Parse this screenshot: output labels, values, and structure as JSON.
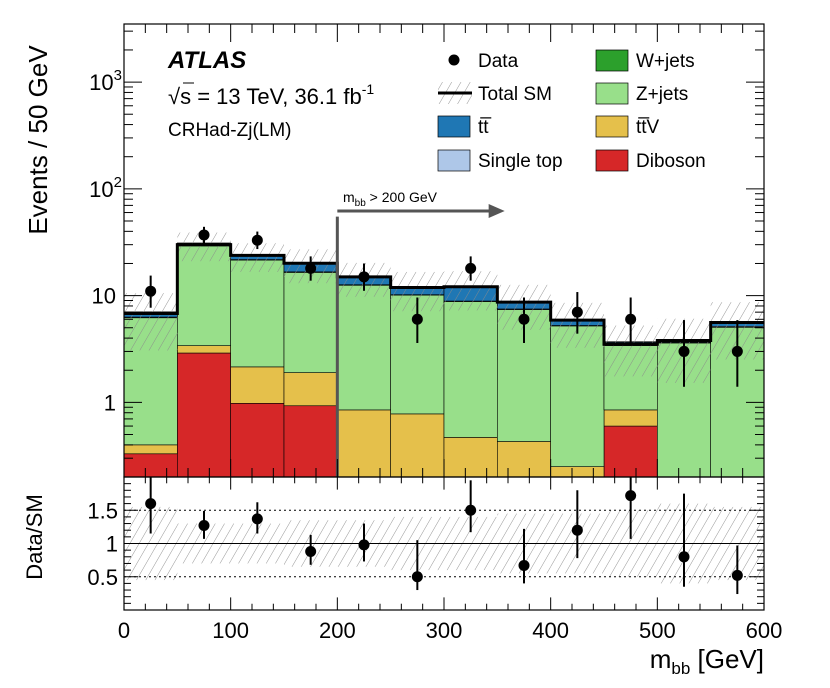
{
  "colors": {
    "wjets": "#2ca02c",
    "zjets": "#98df8a",
    "ttbar": "#1f77b4",
    "singletop": "#aec7e8",
    "ttv": "#e5c04b",
    "diboson": "#d62728",
    "arrow": "#555555"
  },
  "chart_data": {
    "type": "bar",
    "subtype": "stacked-histogram-with-ratio",
    "experiment": "ATLAS",
    "energy_prefix": "s = 13 TeV, 36.1 fb",
    "energy_sup": "-1",
    "region": "CRHad-Zj(LM)",
    "ylabel": "Events / 50 GeV",
    "ratio_ylabel": "Data/SM",
    "xlabel_main": "m",
    "xlabel_sub": "bb",
    "xlabel_unit": "[GeV]",
    "xlim": [
      0,
      600
    ],
    "ylim_log": [
      0.2,
      3500
    ],
    "ratio_ylim": [
      0.0,
      2.0
    ],
    "x_ticks": [
      "0",
      "100",
      "200",
      "300",
      "400",
      "500",
      "600"
    ],
    "y_ticks": [
      {
        "value": 1,
        "label": "1"
      },
      {
        "value": 10,
        "label": "10"
      },
      {
        "value": 100,
        "label": "10",
        "sup": "2"
      },
      {
        "value": 1000,
        "label": "10",
        "sup": "3"
      }
    ],
    "ratio_ticks": [
      {
        "value": 0.5,
        "label": "0.5"
      },
      {
        "value": 1.0,
        "label": "1"
      },
      {
        "value": 1.5,
        "label": "1.5"
      }
    ],
    "bin_edges": [
      0,
      50,
      100,
      150,
      200,
      250,
      300,
      350,
      400,
      450,
      500,
      550,
      600
    ],
    "series": [
      {
        "name": "Diboson",
        "color_key": "diboson",
        "values": [
          0.33,
          2.9,
          0.98,
          0.93,
          0,
          0,
          0,
          0,
          0,
          0.6,
          0,
          0
        ]
      },
      {
        "name": "ttV",
        "color_key": "ttv",
        "values": [
          0.07,
          0.5,
          1.17,
          0.97,
          0.85,
          0.78,
          0.47,
          0.43,
          0.25,
          0.25,
          0,
          0
        ]
      },
      {
        "name": "Z+jets",
        "color_key": "zjets",
        "values": [
          5.8,
          25.8,
          19.35,
          14.6,
          11.65,
          9.32,
          8.33,
          6.97,
          4.95,
          2.55,
          3.6,
          5.05
        ]
      },
      {
        "name": "Single top",
        "color_key": "singletop",
        "values": [
          0.1,
          0.3,
          0.25,
          0.2,
          0.15,
          0.1,
          0.1,
          0.1,
          0.05,
          0.05,
          0.05,
          0.1
        ]
      },
      {
        "name": "ttbar",
        "color_key": "ttbar",
        "values": [
          0.7,
          1.5,
          2.25,
          3.3,
          2.35,
          1.7,
          3.1,
          1.2,
          0.6,
          0.2,
          0.1,
          0.35
        ]
      },
      {
        "name": "W+jets",
        "color_key": "wjets",
        "values": [
          0.05,
          0.1,
          0.1,
          0.1,
          0.1,
          0.05,
          0.05,
          0.05,
          0.05,
          0.05,
          0.05,
          0.05
        ]
      }
    ],
    "total_sm": [
      6.8,
      30.0,
      23.8,
      20.1,
      15.0,
      11.9,
      12.1,
      8.7,
      5.9,
      3.5,
      3.8,
      5.6
    ],
    "data": {
      "x": [
        25,
        75,
        125,
        175,
        225,
        275,
        325,
        375,
        425,
        475,
        525,
        575
      ],
      "y": [
        11,
        37,
        33,
        18,
        15,
        6,
        18,
        6,
        7,
        6,
        3,
        3
      ],
      "err_lo": [
        3.3,
        6,
        5.7,
        4.2,
        3.9,
        2.4,
        4.2,
        2.4,
        2.6,
        2.4,
        1.6,
        1.6
      ],
      "err_hi": [
        4.4,
        7.1,
        6.8,
        5.3,
        5,
        3.6,
        5.3,
        3.6,
        3.8,
        3.6,
        2.9,
        2.9
      ]
    },
    "ratio": {
      "x": [
        25,
        75,
        125,
        175,
        225,
        275,
        325,
        375,
        425,
        475,
        525,
        575
      ],
      "y": [
        1.6,
        1.27,
        1.37,
        0.88,
        0.98,
        0.5,
        1.5,
        0.67,
        1.2,
        1.72,
        0.8,
        0.52
      ],
      "err_lo": [
        0.45,
        0.2,
        0.22,
        0.2,
        0.25,
        0.2,
        0.33,
        0.27,
        0.42,
        0.65,
        0.45,
        0.28
      ],
      "err_hi": [
        0.6,
        0.22,
        0.25,
        0.25,
        0.32,
        0.55,
        0.45,
        0.55,
        0.6,
        0.75,
        0.95,
        0.45
      ]
    },
    "band_rel_unc": [
      0.55,
      0.3,
      0.3,
      0.35,
      0.35,
      0.4,
      0.4,
      0.45,
      0.45,
      0.5,
      0.6,
      0.55
    ],
    "cut_x": 200,
    "annotation": {
      "label": "m",
      "sub": "bb",
      "rest": " > 200 GeV",
      "arrow_from": 200,
      "arrow_to": 340,
      "y": 55
    },
    "legend": [
      {
        "label": "Data",
        "type": "marker"
      },
      {
        "label": "W+jets",
        "type": "box",
        "color_key": "wjets"
      },
      {
        "label": "Total SM",
        "type": "line-band"
      },
      {
        "label": "Z+jets",
        "type": "box",
        "color_key": "zjets"
      },
      {
        "label": "tt̅",
        "type": "box",
        "color_key": "ttbar"
      },
      {
        "label": "tt̅V",
        "type": "box",
        "color_key": "ttv"
      },
      {
        "label": "Single top",
        "type": "box",
        "color_key": "singletop"
      },
      {
        "label": "Diboson",
        "type": "box",
        "color_key": "diboson"
      }
    ]
  }
}
